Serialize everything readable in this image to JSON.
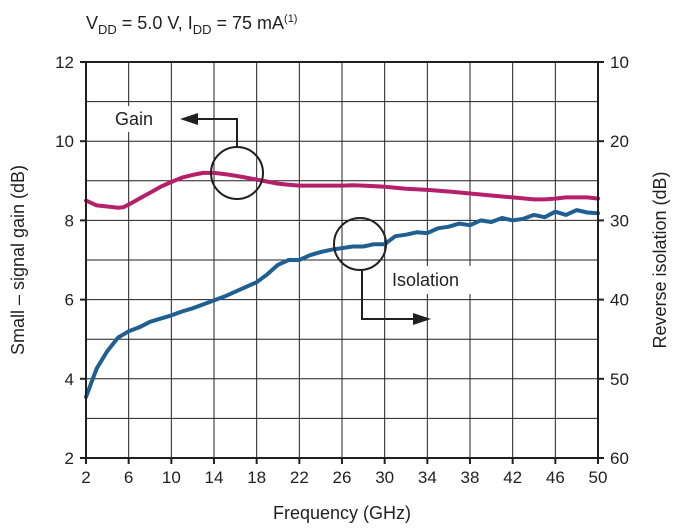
{
  "chart_data": {
    "type": "line",
    "title": {
      "vdd_main": "V",
      "vdd_sub": "DD",
      "vdd_value": " = 5.0 V, I",
      "idd_sub": "DD",
      "idd_value": " = 75 mA",
      "footnote": "(1)"
    },
    "xlabel": "Frequency (GHz)",
    "ylabel_left": "Small – signal gain (dB)",
    "ylabel_right": "Reverse isolation (dB)",
    "xlim": [
      2,
      50
    ],
    "ylim_left": [
      2,
      12
    ],
    "ylim_right": [
      10,
      60
    ],
    "right_axis_inverted": true,
    "grid": true,
    "x_ticks": [
      "2",
      "6",
      "10",
      "14",
      "18",
      "22",
      "26",
      "30",
      "34",
      "38",
      "42",
      "46",
      "50"
    ],
    "y_ticks_left": [
      "2",
      "4",
      "6",
      "8",
      "10",
      "12"
    ],
    "y_ticks_right": [
      "10",
      "20",
      "30",
      "40",
      "50",
      "60"
    ],
    "colors": {
      "gain": "#b5206b",
      "isolation": "#1f5f91",
      "grid": "#231f20"
    },
    "series": [
      {
        "name": "Gain",
        "axis": "left",
        "x": [
          2,
          3,
          4,
          5,
          5.5,
          6,
          7,
          8,
          9,
          10,
          11,
          12,
          13,
          14,
          15,
          16,
          17,
          18,
          19,
          20,
          21,
          22,
          24,
          26,
          27,
          28,
          30,
          32,
          34,
          36,
          38,
          40,
          42,
          44,
          45,
          46,
          47,
          48,
          49,
          50
        ],
        "values": [
          8.5,
          8.38,
          8.35,
          8.32,
          8.33,
          8.4,
          8.55,
          8.7,
          8.85,
          8.97,
          9.08,
          9.15,
          9.2,
          9.2,
          9.17,
          9.13,
          9.08,
          9.03,
          8.98,
          8.93,
          8.9,
          8.88,
          8.88,
          8.88,
          8.89,
          8.88,
          8.85,
          8.8,
          8.77,
          8.73,
          8.68,
          8.63,
          8.58,
          8.53,
          8.53,
          8.55,
          8.58,
          8.58,
          8.58,
          8.55
        ]
      },
      {
        "name": "Isolation",
        "axis": "right",
        "x": [
          2,
          2.5,
          3,
          4,
          5,
          6,
          7,
          8,
          9,
          10,
          11,
          12,
          13,
          14,
          15,
          16,
          17,
          18,
          19,
          20,
          21,
          22,
          23,
          24,
          25,
          26,
          27,
          28,
          29,
          30,
          31,
          32,
          33,
          34,
          35,
          36,
          37,
          38,
          39,
          40,
          41,
          42,
          43,
          44,
          45,
          46,
          47,
          48,
          49,
          50
        ],
        "values": [
          52.3,
          50.5,
          48.7,
          46.5,
          44.8,
          44.0,
          43.5,
          42.8,
          42.4,
          42.0,
          41.5,
          41.1,
          40.6,
          40.1,
          39.6,
          39.0,
          38.4,
          37.8,
          36.8,
          35.6,
          35.0,
          35.0,
          34.4,
          34.0,
          33.7,
          33.5,
          33.3,
          33.3,
          33.0,
          33.0,
          32.0,
          31.8,
          31.5,
          31.6,
          31.0,
          30.8,
          30.4,
          30.6,
          30.0,
          30.2,
          29.7,
          30.0,
          29.8,
          29.3,
          29.6,
          28.9,
          29.3,
          28.7,
          29.0,
          29.1
        ]
      }
    ],
    "annotations": {
      "gain_label": "Gain",
      "isolation_label": "Isolation"
    }
  }
}
